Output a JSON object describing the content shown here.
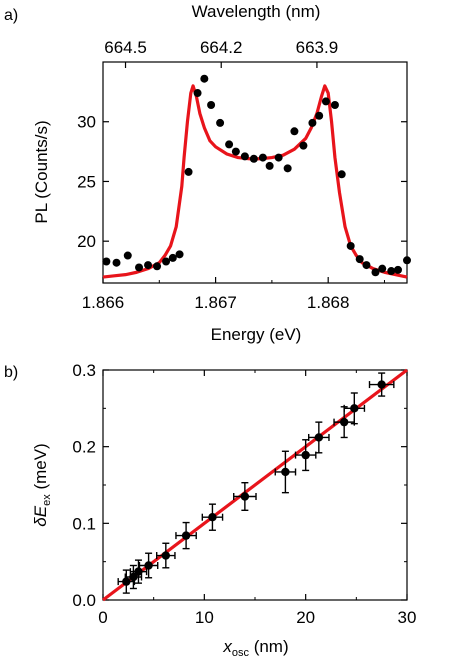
{
  "colors": {
    "fit": "#e8141b",
    "points": "#000000",
    "axes": "#000000"
  },
  "chart_data": [
    {
      "panel": "a)",
      "type": "scatter",
      "xlabel": "Energy (eV)",
      "ylabel": "PL (Counts/s)",
      "top_xlabel": "Wavelength (nm)",
      "xlim": [
        1.866,
        1.8687
      ],
      "ylim": [
        16.5,
        35
      ],
      "xticks": [
        1.866,
        1.867,
        1.868
      ],
      "xtick_labels": [
        "1.866",
        "1.867",
        "1.868"
      ],
      "yticks": [
        20,
        25,
        30
      ],
      "ytick_labels": [
        "20",
        "25",
        "30"
      ],
      "top_ticks": [
        {
          "energy": 1.8662,
          "label": "664.5"
        },
        {
          "energy": 1.86705,
          "label": "664.2"
        },
        {
          "energy": 1.8679,
          "label": "663.9"
        }
      ],
      "series": [
        {
          "kind": "points",
          "x": [
            1.86603,
            1.86612,
            1.86622,
            1.86632,
            1.8664,
            1.86648,
            1.86656,
            1.86662,
            1.86668,
            1.86676,
            1.86684,
            1.8669,
            1.86696,
            1.86704,
            1.86712,
            1.86718,
            1.86726,
            1.86734,
            1.86742,
            1.86748,
            1.86756,
            1.86764,
            1.8677,
            1.86778,
            1.86786,
            1.86792,
            1.86798,
            1.86806,
            1.86812,
            1.8682,
            1.86828,
            1.86834,
            1.86842,
            1.86848,
            1.86856,
            1.86862,
            1.8687
          ],
          "y": [
            18.3,
            18.2,
            18.8,
            17.8,
            18.0,
            17.9,
            18.3,
            18.6,
            18.9,
            25.8,
            32.4,
            33.6,
            31.4,
            29.9,
            28.1,
            27.5,
            27.1,
            26.9,
            27.0,
            26.3,
            27.0,
            26.1,
            29.2,
            28.0,
            29.9,
            30.5,
            31.7,
            31.4,
            25.6,
            19.6,
            18.5,
            18.0,
            17.4,
            17.7,
            17.5,
            17.6,
            18.4
          ]
        },
        {
          "kind": "fit",
          "x": [
            1.866,
            1.8661,
            1.8662,
            1.8663,
            1.8664,
            1.8665,
            1.86655,
            1.8666,
            1.86665,
            1.8667,
            1.86672,
            1.86675,
            1.86678,
            1.8668,
            1.86683,
            1.86686,
            1.8669,
            1.86695,
            1.867,
            1.8671,
            1.8672,
            1.8673,
            1.8674,
            1.8675,
            1.8676,
            1.8677,
            1.8678,
            1.86785,
            1.8679,
            1.86794,
            1.86797,
            1.868,
            1.86803,
            1.86806,
            1.8681,
            1.86815,
            1.8682,
            1.86825,
            1.8683,
            1.8684,
            1.8685,
            1.8686,
            1.8687
          ],
          "y": [
            17.0,
            17.1,
            17.2,
            17.4,
            17.7,
            18.2,
            18.8,
            19.6,
            21.2,
            24.6,
            27.0,
            30.0,
            32.4,
            33.0,
            32.1,
            30.7,
            29.5,
            28.4,
            27.9,
            27.3,
            27.0,
            26.9,
            26.9,
            27.0,
            27.2,
            27.7,
            28.6,
            29.5,
            30.7,
            32.1,
            33.0,
            32.4,
            30.0,
            27.0,
            24.1,
            21.2,
            19.6,
            18.8,
            18.2,
            17.7,
            17.4,
            17.2,
            17.0
          ]
        }
      ]
    },
    {
      "panel": "b)",
      "type": "scatter",
      "xlabel": "x",
      "xlabel_sub": "osc",
      "xlabel_unit": " (nm)",
      "ylabel": "δE",
      "ylabel_sub": "ex",
      "ylabel_unit": " (meV)",
      "xlim": [
        0,
        30
      ],
      "ylim": [
        0,
        0.3
      ],
      "xticks": [
        0,
        10,
        20,
        30
      ],
      "xtick_labels": [
        "0",
        "10",
        "20",
        "30"
      ],
      "yticks": [
        0,
        0.1,
        0.2,
        0.3
      ],
      "ytick_labels": [
        "0.0",
        "0.1",
        "0.2",
        "0.3"
      ],
      "points": [
        {
          "x": 2.3,
          "y": 0.024,
          "xerr": 0.8,
          "yerr": 0.015
        },
        {
          "x": 3.0,
          "y": 0.03,
          "xerr": 0.8,
          "yerr": 0.015
        },
        {
          "x": 3.5,
          "y": 0.037,
          "xerr": 0.8,
          "yerr": 0.015
        },
        {
          "x": 4.5,
          "y": 0.045,
          "xerr": 0.9,
          "yerr": 0.016
        },
        {
          "x": 6.2,
          "y": 0.058,
          "xerr": 0.9,
          "yerr": 0.016
        },
        {
          "x": 8.2,
          "y": 0.084,
          "xerr": 1.0,
          "yerr": 0.017
        },
        {
          "x": 10.8,
          "y": 0.108,
          "xerr": 1.0,
          "yerr": 0.017
        },
        {
          "x": 14.0,
          "y": 0.135,
          "xerr": 1.1,
          "yerr": 0.018
        },
        {
          "x": 18.0,
          "y": 0.167,
          "xerr": 1.0,
          "yerr": 0.027
        },
        {
          "x": 20.0,
          "y": 0.189,
          "xerr": 1.0,
          "yerr": 0.02
        },
        {
          "x": 21.3,
          "y": 0.212,
          "xerr": 1.0,
          "yerr": 0.02
        },
        {
          "x": 23.8,
          "y": 0.232,
          "xerr": 1.0,
          "yerr": 0.02
        },
        {
          "x": 24.8,
          "y": 0.25,
          "xerr": 1.0,
          "yerr": 0.02
        },
        {
          "x": 27.5,
          "y": 0.281,
          "xerr": 1.2,
          "yerr": 0.015
        }
      ],
      "fit": {
        "x": [
          0,
          30
        ],
        "y": [
          0,
          0.3
        ]
      }
    }
  ]
}
